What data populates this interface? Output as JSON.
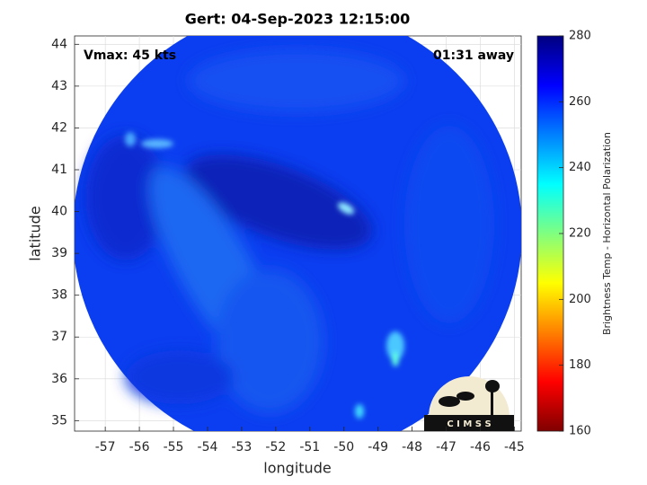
{
  "chart_data": {
    "type": "image",
    "title": "Gert: 04-Sep-2023 12:15:00",
    "annotations": [
      "Vmax: 45 kts",
      "01:31 away"
    ],
    "x_label": "longitude",
    "y_label": "latitude",
    "xlim": [
      -57.9,
      -44.8
    ],
    "xticks": [
      -57,
      -56,
      -55,
      -54,
      -53,
      -52,
      -51,
      -50,
      -49,
      -48,
      -47,
      -46,
      -45
    ],
    "ylim": [
      34.75,
      44.2
    ],
    "yticks": [
      35,
      36,
      37,
      38,
      39,
      40,
      41,
      42,
      43,
      44
    ],
    "grid": true,
    "colorbar": {
      "label": "Brightness Temp - Horizontal Polarization",
      "clim": [
        160,
        280
      ],
      "cticks": [
        160,
        180,
        200,
        220,
        240,
        260,
        280
      ],
      "colormap": [
        "#800000",
        "#ff0000",
        "#ff8000",
        "#ffff00",
        "#80ff80",
        "#00ffff",
        "#0080ff",
        "#0000ff",
        "#000080"
      ]
    },
    "logo_text": "C I M S S"
  }
}
